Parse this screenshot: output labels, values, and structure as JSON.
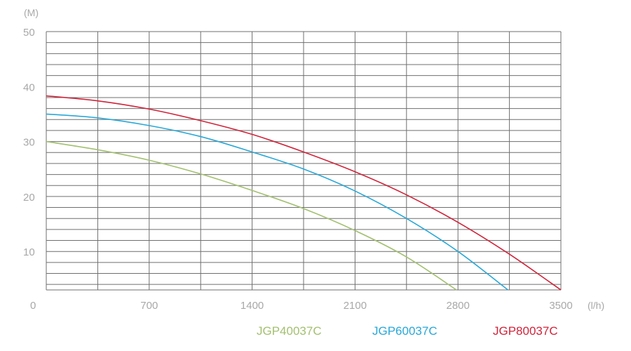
{
  "chart_data": {
    "type": "line",
    "title": "",
    "xlabel": "(l/h)",
    "ylabel": "(M)",
    "xlim": [
      0,
      3500
    ],
    "ylim": [
      3,
      50
    ],
    "x_ticks": [
      0,
      700,
      1400,
      2100,
      2800,
      3500
    ],
    "x_tick_labels": [
      "0",
      "700",
      "1400",
      "2100",
      "2800",
      "3500"
    ],
    "y_ticks": [
      10,
      20,
      30,
      40,
      50
    ],
    "y_tick_labels": [
      "10",
      "20",
      "30",
      "40",
      "50"
    ],
    "grid": true,
    "legend_position": "bottom-right",
    "series": [
      {
        "name": "JGP40037C",
        "color": "#a3c070",
        "x": [
          0,
          350,
          700,
          1050,
          1400,
          1750,
          2100,
          2450,
          2790
        ],
        "y": [
          30,
          28.5,
          26.6,
          24.1,
          21.1,
          17.8,
          13.8,
          9.0,
          3
        ]
      },
      {
        "name": "JGP60037C",
        "color": "#29a8d8",
        "x": [
          0,
          350,
          700,
          1050,
          1400,
          1750,
          2100,
          2450,
          2800,
          3140
        ],
        "y": [
          35,
          34.3,
          32.9,
          30.9,
          28.1,
          25.0,
          21.0,
          16.0,
          10.0,
          3
        ]
      },
      {
        "name": "JGP80037C",
        "color": "#d0243a",
        "x": [
          0,
          350,
          700,
          1050,
          1400,
          1750,
          2100,
          2450,
          2800,
          3150,
          3500
        ],
        "y": [
          38.3,
          37.4,
          35.9,
          33.8,
          31.3,
          28.1,
          24.5,
          20.3,
          15.3,
          9.5,
          3
        ]
      }
    ]
  }
}
